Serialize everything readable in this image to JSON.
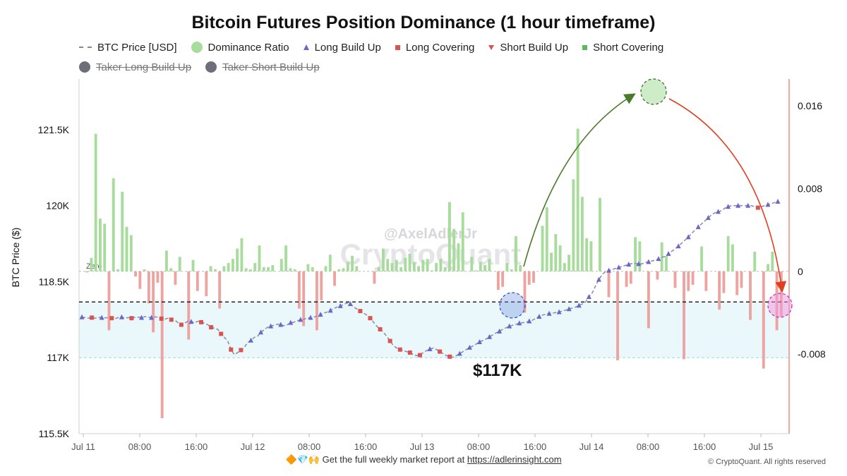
{
  "title": "Bitcoin Futures Position Dominance (1 hour timeframe)",
  "legend": [
    {
      "label": "BTC Price [USD]",
      "icon": "dash-line-icon",
      "color": "#888888",
      "enabled": true
    },
    {
      "label": "Dominance Ratio",
      "icon": "circle-icon",
      "color": "#a8dc9c",
      "enabled": true
    },
    {
      "label": "Long Build Up",
      "icon": "triangle-up-icon",
      "color": "#6b66c9",
      "enabled": true
    },
    {
      "label": "Long Covering",
      "icon": "square-icon",
      "color": "#d9534f",
      "enabled": true
    },
    {
      "label": "Short Build Up",
      "icon": "triangle-down-icon",
      "color": "#d9534f",
      "enabled": true
    },
    {
      "label": "Short Covering",
      "icon": "square-icon",
      "color": "#5cb85c",
      "enabled": true
    },
    {
      "label": "Taker Long Build Up",
      "icon": "circle-icon",
      "color": "#6e6e7a",
      "enabled": false
    },
    {
      "label": "Taker Short Build Up",
      "icon": "circle-icon",
      "color": "#6e6e7a",
      "enabled": false
    }
  ],
  "annotations": {
    "watermark_handle": "@AxelAdlerJr",
    "watermark_brand": "CryptoQuant",
    "price_level": "$117K",
    "zero_label": "Zero"
  },
  "footer": {
    "icons": "🔶💎🙌",
    "text": "Get the full weekly market report at",
    "link": "https://adlerinsight.com",
    "copyright": "© CryptoQuant. All rights reserved"
  },
  "colors": {
    "positive_bar": "#a8dc9c",
    "negative_bar": "#eda4a0",
    "long_build_up": "#6b66c9",
    "long_covering": "#d9534f",
    "price_line": "#8a8aa8",
    "band_fill": "#eaf7fb",
    "arrow_up": "#4b7a2a",
    "arrow_down": "#e04020"
  },
  "chart_data": {
    "type": "bar",
    "title": "Bitcoin Futures Position Dominance (1 hour timeframe)",
    "xlabel": "",
    "ylabel_left": "BTC Price ($)",
    "x_ticks": [
      "Jul 11",
      "08:00",
      "16:00",
      "Jul 12",
      "08:00",
      "16:00",
      "Jul 13",
      "08:00",
      "16:00",
      "Jul 14",
      "08:00",
      "16:00",
      "Jul 15"
    ],
    "y_left_ticks": [
      "115.5K",
      "117K",
      "118.5K",
      "120K",
      "121.5K"
    ],
    "y_left_range": [
      115500,
      122500
    ],
    "y_right_ticks": [
      "-0.008",
      "0",
      "0.008",
      "0.016"
    ],
    "y_right_range": [
      -0.0157,
      0.0186
    ],
    "reference_lines": {
      "price_dashed_black": 118100,
      "price_band_floor": 117000
    },
    "series": [
      {
        "name": "Dominance Ratio",
        "kind": "bar",
        "values": [
          -0.0001,
          0.0013,
          0.0133,
          0.0051,
          0.0046,
          -0.0057,
          0.009,
          0.0002,
          0.0077,
          0.0043,
          0.0035,
          -0.0005,
          -0.0017,
          0.0002,
          -0.0031,
          -0.0059,
          -0.0011,
          -0.0142,
          0.002,
          0.0003,
          -0.0013,
          0.0014,
          0.0,
          -0.0066,
          0.0011,
          -0.0019,
          0.0,
          -0.0024,
          0.0005,
          0.0002,
          -0.0036,
          0.0005,
          0.0008,
          0.0012,
          0.0022,
          0.0032,
          0.0003,
          0.0002,
          0.0008,
          0.0025,
          0.0004,
          0.0004,
          0.0006,
          0.0,
          0.0012,
          0.0025,
          0.0003,
          0.0002,
          -0.0036,
          -0.0053,
          0.0007,
          0.0004,
          -0.0057,
          -0.0028,
          0.0005,
          0.0016,
          -0.0014,
          0.0002,
          0.0003,
          0.0009,
          0.0015,
          0.0005,
          0.0,
          0.0,
          0.0,
          -0.0012,
          0.0004,
          0.0022,
          0.0012,
          0.0008,
          0.0011,
          0.0004,
          0.0013,
          0.0017,
          0.0009,
          0.0005,
          0.0011,
          0.0012,
          0.0001,
          0.0008,
          0.0012,
          0.0004,
          0.0067,
          0.0041,
          0.0027,
          0.0057,
          0.0,
          0.0014,
          0.0001,
          0.0009,
          0.0006,
          0.0012,
          0.0,
          -0.0018,
          -0.0015,
          0.0008,
          0.0002,
          0.0034,
          0.0006,
          -0.004,
          -0.0013,
          -0.0011,
          0.0,
          0.0044,
          0.0062,
          0.0018,
          0.0036,
          0.0025,
          0.0008,
          0.0016,
          0.0089,
          0.0138,
          0.0072,
          0.0032,
          0.0029,
          0.0,
          0.0071,
          0.0,
          -0.0025,
          0.0,
          -0.0086,
          0.0,
          -0.0015,
          -0.0012,
          0.0033,
          0.0029,
          0.0,
          -0.0055,
          0.0,
          -0.0008,
          0.0028,
          0.0015,
          0.0,
          -0.0016,
          0.0,
          -0.0085,
          -0.0019,
          -0.0013,
          0.0,
          0.0024,
          -0.0019,
          0.0,
          0.0,
          -0.0037,
          -0.0021,
          0.0034,
          0.0026,
          -0.0023,
          -0.0016,
          0.0,
          -0.0047,
          0.0019,
          0.0,
          -0.0094,
          0.0007,
          0.0019,
          -0.0057,
          -0.0044
        ]
      },
      {
        "name": "BTC Price [USD]",
        "kind": "line",
        "values": [
          117800,
          117790,
          117780,
          117790,
          117780,
          117795,
          117790,
          117785,
          117790,
          117780,
          117770,
          117790,
          117800,
          117780,
          117790,
          117780,
          117795,
          117800,
          117790,
          117810,
          117800,
          117790,
          117805,
          117800,
          117770,
          117760,
          117780,
          117750,
          117740,
          117690,
          117650,
          117680,
          117720,
          117710,
          117690,
          117720,
          117700,
          117680,
          117650,
          117600,
          117580,
          117560,
          117470,
          117400,
          117330,
          117160,
          117060,
          117100,
          117150,
          117200,
          117300,
          117340,
          117400,
          117420,
          117500,
          117550,
          117600,
          117620,
          117640,
          117660,
          117650,
          117630,
          117650,
          117690,
          117700,
          117730,
          117750,
          117760,
          117780,
          117790,
          117800,
          117820,
          117850,
          117880,
          117900,
          117930,
          117970,
          118000,
          118020,
          118050,
          118080,
          118060,
          118000,
          117960,
          117920,
          117880,
          117840,
          117780,
          117700,
          117620,
          117560,
          117500,
          117420,
          117330,
          117240,
          117190,
          117160,
          117140,
          117120,
          117100,
          117060,
          117040,
          117050,
          117100,
          117140,
          117170,
          117190,
          117160,
          117120,
          117080,
          117040,
          117020,
          117010,
          117040,
          117080,
          117120,
          117160,
          117200,
          117230,
          117270,
          117310,
          117340,
          117370,
          117410,
          117450,
          117490,
          117520,
          117560,
          117590,
          117620,
          117640,
          117660,
          117680,
          117690,
          117700,
          117720,
          117740,
          117780,
          117810,
          117840,
          117860,
          117870,
          117880,
          117890,
          117900,
          117920,
          117940,
          117960,
          117980,
          118000,
          118030,
          118060,
          118100,
          118200,
          118280,
          118420,
          118540,
          118640,
          118700,
          118720,
          118740,
          118760,
          118780,
          118800,
          118820,
          118840,
          118860,
          118860,
          118850,
          118850,
          118880,
          118890,
          118910,
          118920,
          118950,
          118980,
          119000,
          119050,
          119100,
          119150,
          119200,
          119260,
          119320,
          119380,
          119450,
          119520,
          119580,
          119640,
          119700,
          119760,
          119820,
          119860,
          119880,
          119900,
          119950,
          119980,
          120000,
          120000,
          120000,
          120000,
          120000,
          120000,
          120000,
          119980,
          119960,
          119980,
          120000,
          120020,
          120040,
          120060,
          120080
        ]
      }
    ]
  }
}
